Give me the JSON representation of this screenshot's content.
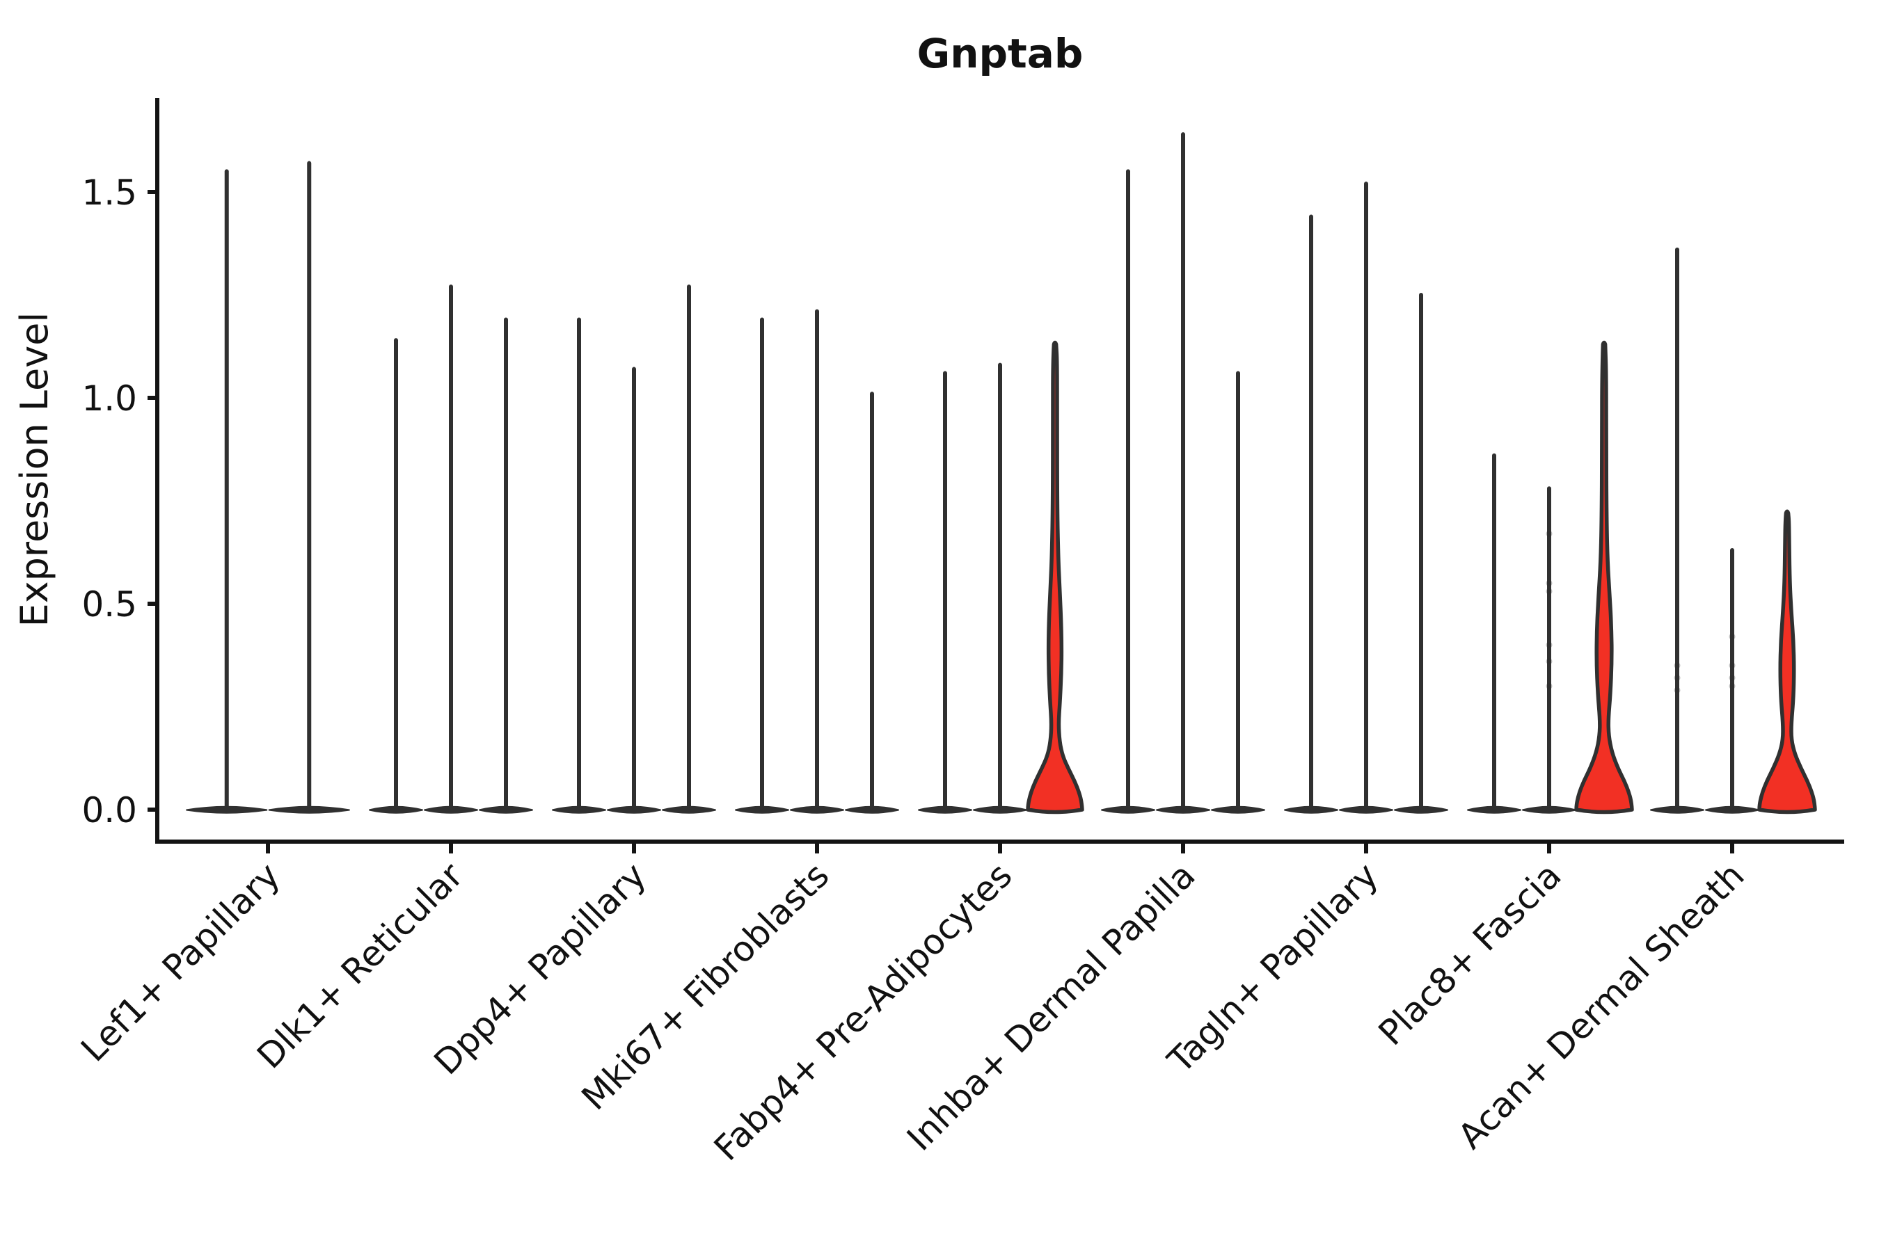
{
  "chart_data": {
    "type": "violin",
    "title": "Gnptab",
    "ylabel": "Expression Level",
    "xlabel": "",
    "yticks": [
      0.0,
      0.5,
      1.0,
      1.5
    ],
    "ytick_labels": [
      "0.0",
      "0.5",
      "1.0",
      "1.5"
    ],
    "ylim": [
      -0.08,
      1.73
    ],
    "grid": false,
    "legend": "none",
    "colors": {
      "highlight_fill": "#F23024",
      "violin_stroke": "#303030",
      "axis_ink": "#141414",
      "background": "#FFFFFF"
    },
    "categories": [
      "Lef1+ Papillary",
      "Dlk1+ Reticular",
      "Dpp4+ Papillary",
      "Mki67+ Fibroblasts",
      "Fabp4+ Pre-Adipocytes",
      "Inhba+ Dermal Papilla",
      "Tagln+ Papillary",
      "Plac8+ Fascia",
      "Acan+ Dermal Sheath"
    ],
    "groups": [
      {
        "label": "Lef1+ Papillary",
        "violins": [
          {
            "max": 1.55,
            "highlighted": false,
            "profile": null
          },
          {
            "max": 1.57,
            "highlighted": false,
            "profile": null
          }
        ]
      },
      {
        "label": "Dlk1+ Reticular",
        "violins": [
          {
            "max": 1.14,
            "highlighted": false,
            "profile": null
          },
          {
            "max": 1.27,
            "highlighted": false,
            "profile": null
          },
          {
            "max": 1.19,
            "highlighted": false,
            "profile": null
          }
        ]
      },
      {
        "label": "Dpp4+ Papillary",
        "violins": [
          {
            "max": 1.19,
            "highlighted": false,
            "profile": null
          },
          {
            "max": 1.07,
            "highlighted": false,
            "profile": null
          },
          {
            "max": 1.27,
            "highlighted": false,
            "profile": null
          }
        ]
      },
      {
        "label": "Mki67+ Fibroblasts",
        "violins": [
          {
            "max": 1.19,
            "highlighted": false,
            "profile": null
          },
          {
            "max": 1.21,
            "highlighted": false,
            "profile": null
          },
          {
            "max": 1.01,
            "highlighted": false,
            "profile": null
          }
        ]
      },
      {
        "label": "Fabp4+ Pre-Adipocytes",
        "violins": [
          {
            "max": 1.06,
            "highlighted": false,
            "profile": null
          },
          {
            "max": 1.08,
            "highlighted": false,
            "profile": null
          },
          {
            "max": 1.13,
            "highlighted": true,
            "profile": [
              [
                0.0,
                39
              ],
              [
                0.015,
                38.5
              ],
              [
                0.04,
                35
              ],
              [
                0.07,
                28
              ],
              [
                0.1,
                19
              ],
              [
                0.13,
                11
              ],
              [
                0.165,
                6.5
              ],
              [
                0.21,
                5
              ],
              [
                0.26,
                7
              ],
              [
                0.33,
                9
              ],
              [
                0.4,
                9.5
              ],
              [
                0.47,
                8.5
              ],
              [
                0.54,
                6.5
              ],
              [
                0.62,
                4.5
              ],
              [
                0.75,
                3.2
              ],
              [
                0.95,
                3
              ],
              [
                1.09,
                3
              ],
              [
                1.13,
                1.6
              ]
            ]
          }
        ]
      },
      {
        "label": "Inhba+ Dermal Papilla",
        "violins": [
          {
            "max": 1.55,
            "highlighted": false,
            "profile": null
          },
          {
            "max": 1.64,
            "highlighted": false,
            "profile": null
          },
          {
            "max": 1.06,
            "highlighted": false,
            "profile": null
          }
        ]
      },
      {
        "label": "Tagln+ Papillary",
        "violins": [
          {
            "max": 1.44,
            "highlighted": false,
            "profile": null
          },
          {
            "max": 1.52,
            "highlighted": false,
            "profile": null
          },
          {
            "max": 1.25,
            "highlighted": false,
            "profile": null
          }
        ]
      },
      {
        "label": "Plac8+ Fascia",
        "violins": [
          {
            "max": 0.86,
            "highlighted": false,
            "profile": null
          },
          {
            "max": 0.78,
            "highlighted": false,
            "profile": null
          },
          {
            "max": 1.13,
            "highlighted": true,
            "profile": [
              [
                0.0,
                40
              ],
              [
                0.015,
                39.5
              ],
              [
                0.04,
                36
              ],
              [
                0.07,
                29
              ],
              [
                0.1,
                20
              ],
              [
                0.14,
                11
              ],
              [
                0.18,
                6.5
              ],
              [
                0.22,
                6
              ],
              [
                0.28,
                9
              ],
              [
                0.36,
                11
              ],
              [
                0.44,
                10.5
              ],
              [
                0.52,
                8
              ],
              [
                0.6,
                5
              ],
              [
                0.7,
                3.6
              ],
              [
                0.88,
                3
              ],
              [
                1.06,
                3
              ],
              [
                1.13,
                1.6
              ]
            ]
          }
        ]
      },
      {
        "label": "Acan+ Dermal Sheath",
        "violins": [
          {
            "max": 1.36,
            "highlighted": false,
            "profile": null
          },
          {
            "max": 0.63,
            "highlighted": false,
            "profile": null
          },
          {
            "max": 0.72,
            "highlighted": true,
            "profile": [
              [
                0.0,
                40
              ],
              [
                0.015,
                39.5
              ],
              [
                0.04,
                36
              ],
              [
                0.07,
                29
              ],
              [
                0.1,
                20
              ],
              [
                0.135,
                11
              ],
              [
                0.17,
                6
              ],
              [
                0.21,
                6
              ],
              [
                0.27,
                9
              ],
              [
                0.34,
                10
              ],
              [
                0.41,
                9
              ],
              [
                0.48,
                6
              ],
              [
                0.55,
                3.8
              ],
              [
                0.64,
                3
              ],
              [
                0.7,
                2.6
              ],
              [
                0.72,
                1.6
              ]
            ]
          }
        ]
      }
    ],
    "points": [
      {
        "group_index": 7,
        "violin_index": 1,
        "values": [
          0.67,
          0.55,
          0.53,
          0.4,
          0.36,
          0.3
        ]
      },
      {
        "group_index": 8,
        "violin_index": 0,
        "values": [
          0.35,
          0.32,
          0.29
        ]
      },
      {
        "group_index": 8,
        "violin_index": 1,
        "values": [
          0.42,
          0.35,
          0.32,
          0.3
        ]
      }
    ]
  }
}
